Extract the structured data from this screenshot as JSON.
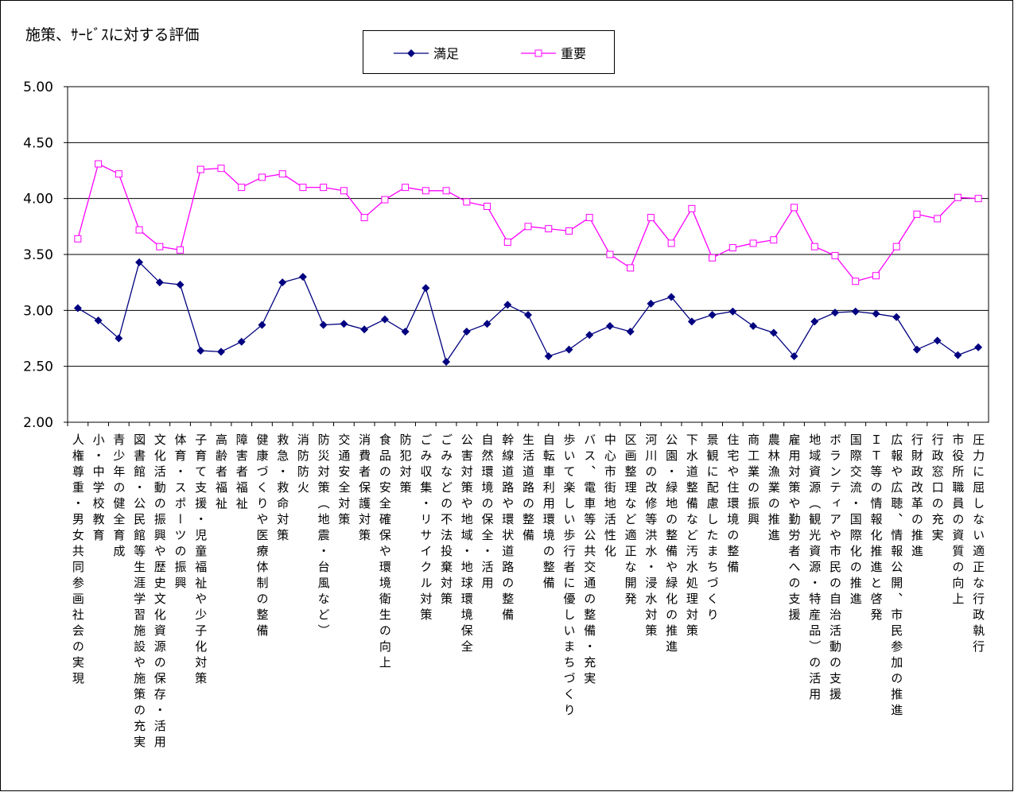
{
  "chart_data": {
    "type": "line",
    "title": "施策、ｻｰﾋﾞｽに対する評価",
    "categories": [
      "人権尊重・男女共同参画社会の実現",
      "小・中学校教育",
      "青少年の健全育成",
      "図書館・公民館等生涯学習施設や施策の充実",
      "文化活動の振興や歴史文化資源の保存・活用",
      "体育・スポーツの振興",
      "子育て支援・児童福祉や少子化対策",
      "高齢者福祉",
      "障害者福祉",
      "健康づくりや医療体制の整備",
      "救急・救命対策",
      "消防防火",
      "防災対策（地震・台風など）",
      "交通安全対策",
      "消費者保護対策",
      "食品の安全確保や環境衛生の向上",
      "防犯対策",
      "ごみ収集・リサイクル対策",
      "ごみなどの不法投棄対策",
      "公害対策や地域・地球環境保全",
      "自然環境の保全・活用",
      "幹線道路や環状道路の整備",
      "生活道路の整備",
      "自転車利用環境の整備",
      "歩いて楽しい歩行者に優しいまちづくり",
      "バス、電車等公共交通の整備・充実",
      "中心市街地活性化",
      "区画整理など適正な開発",
      "河川の改修等洪水・浸水対策",
      "公園・緑地の整備や緑化の推進",
      "下水道整備など汚水処理対策",
      "景観に配慮したまちづくり",
      "住宅や住環境の整備",
      "商工業の振興",
      "農林漁業の推進",
      "雇用対策や勤労者への支援",
      "地域資源（観光資源・特産品）の活用",
      "ボランティアや市民の自治活動の支援",
      "国際交流・国際化の推進",
      "ＩＴ等の情報化推進と啓発",
      "広報や広聴、情報公開、市民参加の推進",
      "行財政改革の推進",
      "行政窓口の充実",
      "市役所職員の資質の向上",
      "圧力に屈しない適正な行政執行"
    ],
    "series": [
      {
        "name": "満足",
        "color": "#000080",
        "marker": "diamond",
        "values": [
          3.02,
          2.91,
          2.75,
          3.43,
          3.25,
          3.23,
          2.64,
          2.63,
          2.72,
          2.87,
          3.25,
          3.3,
          2.87,
          2.88,
          2.83,
          2.92,
          2.81,
          3.2,
          2.54,
          2.81,
          2.88,
          3.05,
          2.96,
          2.59,
          2.65,
          2.78,
          2.86,
          2.81,
          3.06,
          3.12,
          2.9,
          2.96,
          2.99,
          2.86,
          2.8,
          2.59,
          2.9,
          2.98,
          2.99,
          2.97,
          2.94,
          2.65,
          2.73,
          2.6,
          2.67
        ]
      },
      {
        "name": "重要",
        "color": "#ff00ff",
        "marker": "square",
        "values": [
          3.64,
          4.31,
          4.22,
          3.72,
          3.57,
          3.54,
          4.26,
          4.27,
          4.1,
          4.19,
          4.22,
          4.1,
          4.1,
          4.07,
          3.83,
          3.99,
          4.1,
          4.07,
          4.07,
          3.97,
          3.93,
          3.61,
          3.75,
          3.73,
          3.71,
          3.83,
          3.5,
          3.38,
          3.83,
          3.6,
          3.91,
          3.47,
          3.56,
          3.6,
          3.63,
          3.92,
          3.57,
          3.49,
          3.26,
          3.31,
          3.57,
          3.86,
          3.82,
          4.01,
          4.0
        ]
      }
    ],
    "ylim": [
      2,
      5
    ],
    "yticks": [
      {
        "value": 2,
        "label": "2.00"
      },
      {
        "value": 2.5,
        "label": "2.50"
      },
      {
        "value": 3,
        "label": "3.00"
      },
      {
        "value": 3.5,
        "label": "3.50"
      },
      {
        "value": 4,
        "label": "4.00"
      },
      {
        "value": 4.5,
        "label": "4.50"
      },
      {
        "value": 5,
        "label": "5.00"
      }
    ],
    "grid": true,
    "legend": "top"
  }
}
